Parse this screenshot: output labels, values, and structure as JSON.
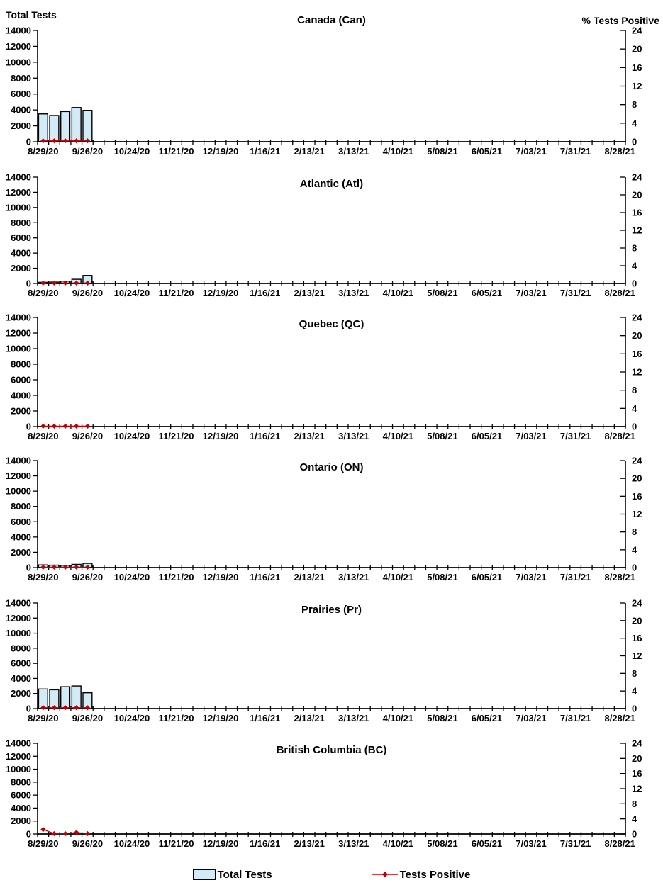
{
  "header": {
    "left_axis_title": "Total Tests",
    "right_axis_title": "% Tests Positive"
  },
  "x_axis": {
    "tick_labels": [
      "8/29/20",
      "9/26/20",
      "10/24/20",
      "11/21/20",
      "12/19/20",
      "1/16/21",
      "2/13/21",
      "3/13/21",
      "4/10/21",
      "5/08/21",
      "6/05/21",
      "7/03/21",
      "7/31/21",
      "8/28/21"
    ],
    "weekly_tick_count": 53,
    "label_every_n_weeks": 4,
    "range": [
      "8/29/20",
      "8/28/21"
    ]
  },
  "left_axis": {
    "title": "Total Tests",
    "min": 0,
    "max": 14000,
    "step": 2000,
    "tick_labels": [
      "0",
      "2000",
      "4000",
      "6000",
      "8000",
      "10000",
      "12000",
      "14000"
    ]
  },
  "right_axis": {
    "title": "% Tests Positive",
    "min": 0,
    "max": 24,
    "step": 4,
    "tick_labels": [
      "0",
      "4",
      "8",
      "12",
      "16",
      "20",
      "24"
    ]
  },
  "legend": {
    "items": [
      {
        "label": "Total Tests",
        "marker": "bar-swatch"
      },
      {
        "label": "Tests Positive",
        "marker": "line-diamond"
      }
    ]
  },
  "colors": {
    "bar_fill": "#D3EAF7",
    "bar_border": "#000000",
    "positive_line": "#C00000",
    "axis": "#000000",
    "text": "#000000",
    "background": "#FFFFFF"
  },
  "chart_data": [
    {
      "type": "bar+line",
      "title": "Canada (Can)",
      "categories": [
        "8/29/20",
        "9/05/20",
        "9/12/20",
        "9/19/20",
        "9/26/20"
      ],
      "series": [
        {
          "name": "Total Tests",
          "kind": "bar",
          "axis": "left",
          "values": [
            3500,
            3300,
            3800,
            4300,
            3950
          ]
        },
        {
          "name": "Tests Positive",
          "kind": "line",
          "axis": "right",
          "values": [
            0.2,
            0.2,
            0.2,
            0.2,
            0.2
          ]
        }
      ],
      "left_ylim": [
        0,
        14000
      ],
      "right_ylim": [
        0,
        24
      ]
    },
    {
      "type": "bar+line",
      "title": "Atlantic (Atl)",
      "categories": [
        "8/29/20",
        "9/05/20",
        "9/12/20",
        "9/19/20",
        "9/26/20"
      ],
      "series": [
        {
          "name": "Total Tests",
          "kind": "bar",
          "axis": "left",
          "values": [
            150,
            180,
            300,
            550,
            1050
          ]
        },
        {
          "name": "Tests Positive",
          "kind": "line",
          "axis": "right",
          "values": [
            0.1,
            0.1,
            0.1,
            0.1,
            0.1
          ]
        }
      ],
      "left_ylim": [
        0,
        14000
      ],
      "right_ylim": [
        0,
        24
      ]
    },
    {
      "type": "bar+line",
      "title": "Quebec (QC)",
      "categories": [
        "8/29/20",
        "9/05/20",
        "9/12/20",
        "9/19/20",
        "9/26/20"
      ],
      "series": [
        {
          "name": "Total Tests",
          "kind": "bar",
          "axis": "left",
          "values": [
            0,
            0,
            0,
            0,
            0
          ]
        },
        {
          "name": "Tests Positive",
          "kind": "line",
          "axis": "right",
          "values": [
            0.1,
            0.1,
            0.1,
            0.1,
            0.1
          ]
        }
      ],
      "left_ylim": [
        0,
        14000
      ],
      "right_ylim": [
        0,
        24
      ]
    },
    {
      "type": "bar+line",
      "title": "Ontario (ON)",
      "categories": [
        "8/29/20",
        "9/05/20",
        "9/12/20",
        "9/19/20",
        "9/26/20"
      ],
      "series": [
        {
          "name": "Total Tests",
          "kind": "bar",
          "axis": "left",
          "values": [
            350,
            320,
            300,
            420,
            550
          ]
        },
        {
          "name": "Tests Positive",
          "kind": "line",
          "axis": "right",
          "values": [
            0.1,
            0.1,
            0.1,
            0.1,
            0.1
          ]
        }
      ],
      "left_ylim": [
        0,
        14000
      ],
      "right_ylim": [
        0,
        24
      ]
    },
    {
      "type": "bar+line",
      "title": "Prairies (Pr)",
      "categories": [
        "8/29/20",
        "9/05/20",
        "9/12/20",
        "9/19/20",
        "9/26/20"
      ],
      "series": [
        {
          "name": "Total Tests",
          "kind": "bar",
          "axis": "left",
          "values": [
            2600,
            2500,
            2900,
            3000,
            2100
          ]
        },
        {
          "name": "Tests Positive",
          "kind": "line",
          "axis": "right",
          "values": [
            0.2,
            0.2,
            0.2,
            0.2,
            0.2
          ]
        }
      ],
      "left_ylim": [
        0,
        14000
      ],
      "right_ylim": [
        0,
        24
      ]
    },
    {
      "type": "bar+line",
      "title": "British Columbia (BC)",
      "categories": [
        "8/29/20",
        "9/05/20",
        "9/12/20",
        "9/19/20",
        "9/26/20"
      ],
      "series": [
        {
          "name": "Total Tests",
          "kind": "bar",
          "axis": "left",
          "values": [
            0,
            0,
            0,
            0,
            0
          ]
        },
        {
          "name": "Tests Positive",
          "kind": "line",
          "axis": "right",
          "values": [
            1.2,
            0.1,
            0.1,
            0.4,
            0.1
          ]
        }
      ],
      "left_ylim": [
        0,
        14000
      ],
      "right_ylim": [
        0,
        24
      ]
    }
  ]
}
